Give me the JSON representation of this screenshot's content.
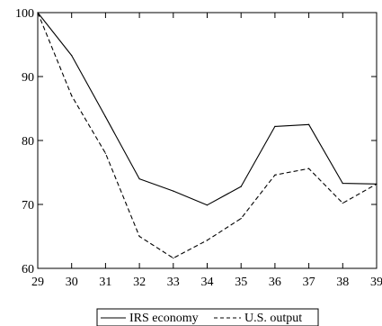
{
  "chart_data": {
    "type": "line",
    "title": "",
    "xlabel": "",
    "ylabel": "",
    "x": [
      29,
      30,
      31,
      32,
      33,
      34,
      35,
      36,
      37,
      38,
      39
    ],
    "x_tick_labels": [
      "29",
      "30",
      "31",
      "32",
      "33",
      "34",
      "35",
      "36",
      "37",
      "38",
      "39"
    ],
    "y_ticks": [
      60,
      70,
      80,
      90,
      100
    ],
    "y_tick_labels": [
      "60",
      "70",
      "80",
      "90",
      "100"
    ],
    "xlim": [
      29,
      39
    ],
    "ylim": [
      60,
      100
    ],
    "grid": false,
    "legend_placement": "bottom-center",
    "series": [
      {
        "name": "IRS economy",
        "style": "solid",
        "color": "#000000",
        "values": [
          100,
          93.3,
          83.7,
          74.0,
          72.1,
          69.9,
          72.8,
          82.2,
          82.5,
          73.3,
          73.2
        ]
      },
      {
        "name": "U.S. output",
        "style": "dashed",
        "color": "#000000",
        "values": [
          100,
          87.0,
          78.0,
          65.0,
          61.6,
          64.4,
          67.8,
          74.6,
          75.6,
          70.2,
          73.2
        ]
      }
    ]
  }
}
